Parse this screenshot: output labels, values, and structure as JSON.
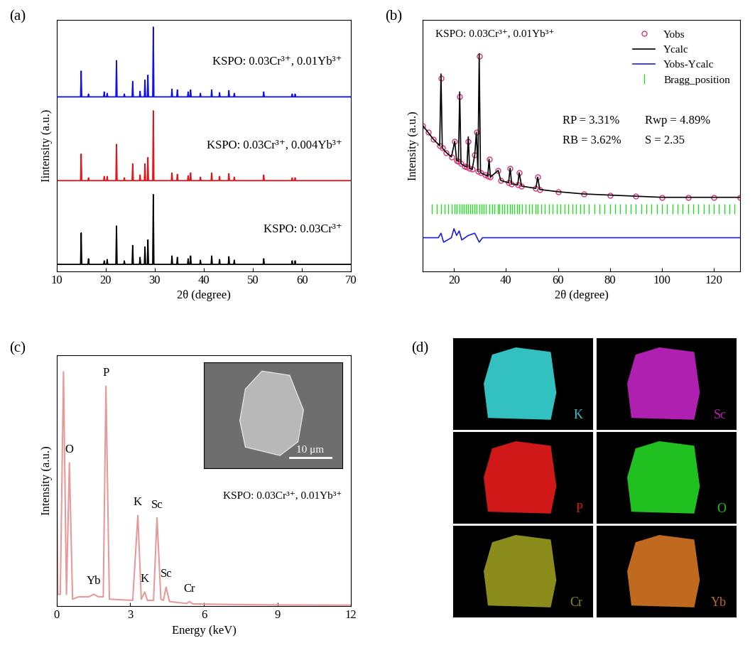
{
  "chart_data": [
    {
      "type": "line",
      "title": "(a)",
      "x_label": "2θ (degree)",
      "y_label": "Iintensity (a.u.)",
      "xlim": [
        10,
        70
      ],
      "xticks": [
        10,
        20,
        30,
        40,
        50,
        60,
        70
      ],
      "ylim": [
        -10,
        350
      ],
      "tick_labels": "x",
      "stacked": true,
      "series": [
        {
          "name": "KSPO: 0.03Cr³⁺",
          "color": "#000000",
          "x": [
            15.0,
            16.5,
            19.7,
            20.3,
            22.2,
            23.8,
            25.5,
            27.0,
            28.0,
            28.6,
            29.7,
            33.5,
            34.6,
            36.8,
            37.3,
            39.3,
            41.6,
            43.2,
            45.1,
            46.2,
            52.2,
            58.0,
            58.6
          ],
          "values": [
            45,
            8,
            5,
            7,
            55,
            5,
            27,
            10,
            25,
            35,
            100,
            12,
            10,
            8,
            12,
            6,
            12,
            7,
            11,
            6,
            8,
            5,
            5
          ]
        },
        {
          "name": "KSPO: 0.03Cr³⁺, 0.004Yb³⁺",
          "color": "#e8141c",
          "x": [
            15.0,
            16.5,
            19.7,
            20.3,
            22.2,
            23.8,
            25.5,
            27.0,
            28.0,
            28.6,
            29.7,
            33.5,
            34.6,
            36.8,
            37.3,
            39.3,
            41.6,
            43.2,
            45.1,
            46.2,
            52.2,
            58.0,
            58.6
          ],
          "values": [
            38,
            4,
            6,
            6,
            52,
            4,
            24,
            8,
            24,
            33,
            100,
            11,
            9,
            7,
            11,
            5,
            11,
            6,
            10,
            5,
            8,
            4,
            4
          ]
        },
        {
          "name": "KSPO: 0.03Cr³⁺, 0.01Yb³⁺",
          "color": "#1010f0",
          "x": [
            15.0,
            16.5,
            19.7,
            20.3,
            22.2,
            23.8,
            25.5,
            27.0,
            28.0,
            28.6,
            29.7,
            33.5,
            34.6,
            36.8,
            37.3,
            39.3,
            41.6,
            43.2,
            45.1,
            46.2,
            52.2,
            58.0,
            58.6
          ],
          "values": [
            37,
            4,
            7,
            5,
            52,
            4,
            22,
            8,
            24,
            31,
            100,
            11,
            10,
            7,
            10,
            5,
            10,
            6,
            9,
            5,
            7,
            4,
            4
          ]
        }
      ]
    },
    {
      "type": "line",
      "title": "(b)",
      "x_label": "2θ (degree)",
      "y_label": "Intensity (a.u.)",
      "label": "KSPO: 0.03Cr³⁺, 0.01Yb³⁺",
      "statistics": [
        "RP = 3.31%",
        "Rwp = 4.89%",
        "RB = 3.62%",
        "S = 2.35"
      ],
      "xlim": [
        8,
        130
      ],
      "xticks": [
        20,
        40,
        60,
        80,
        100,
        120
      ],
      "ylim": [
        0,
        112
      ],
      "tick_labels": "x",
      "legend": "upper right",
      "series": [
        {
          "name": "Yobs",
          "color": "#e0307a",
          "marker": "circle",
          "line_style": "none",
          "x": [
            8,
            10,
            12,
            14.5,
            15,
            15.5,
            17,
            19,
            20.3,
            21,
            21.7,
            22.2,
            22.7,
            24,
            25,
            25.5,
            26,
            27,
            28,
            28.6,
            29.2,
            29.7,
            30.2,
            32,
            33,
            33.5,
            34,
            37,
            38,
            41,
            41.6,
            42.2,
            44.5,
            45.1,
            46,
            51.5,
            52.2,
            53,
            60,
            70,
            80,
            90,
            100,
            110,
            120,
            130
          ],
          "values": [
            65,
            62,
            59,
            56,
            86,
            55,
            53,
            51,
            58,
            49.5,
            49,
            78,
            48,
            47,
            46.5,
            58,
            46,
            45.5,
            52,
            62,
            44.5,
            96,
            44,
            43,
            42.5,
            50,
            42,
            45,
            40.5,
            39.5,
            46,
            39,
            38.5,
            44,
            38,
            37,
            42,
            36.5,
            35.5,
            34.5,
            34,
            33.5,
            33,
            33,
            33,
            33
          ]
        },
        {
          "name": "Ycalc",
          "color": "#000000",
          "marker": "none",
          "line_style": "solid",
          "x": [
            8,
            10,
            12,
            14.5,
            15,
            15.5,
            17,
            19,
            20.3,
            21,
            21.7,
            22.2,
            22.7,
            24,
            25,
            25.5,
            26,
            27,
            28,
            28.6,
            29.2,
            29.7,
            30.2,
            32,
            33,
            33.5,
            34,
            37,
            38,
            41,
            41.6,
            42.2,
            44.5,
            45.1,
            46,
            51.5,
            52.2,
            53,
            60,
            70,
            80,
            90,
            100,
            110,
            120,
            130
          ],
          "values": [
            65,
            62,
            59,
            56,
            88,
            55,
            53,
            51,
            58,
            49.5,
            49,
            80,
            48,
            47,
            46.5,
            60,
            46,
            45.5,
            52,
            62,
            44.5,
            97,
            44,
            43,
            42.5,
            50,
            42,
            45,
            40.5,
            39.5,
            46,
            39,
            38.5,
            44,
            38,
            37,
            42,
            36.5,
            35.5,
            34.5,
            34,
            33.5,
            33,
            33,
            33,
            33
          ]
        },
        {
          "name": "Yobs-Ycalc",
          "color": "#2020e0",
          "marker": "none",
          "line_style": "solid",
          "x": [
            8,
            14,
            15,
            16,
            19,
            20,
            21,
            22,
            23,
            25.5,
            28,
            29.7,
            31,
            40,
            60,
            90,
            130
          ],
          "values": [
            15,
            15,
            17,
            13,
            15,
            19,
            16,
            18,
            14,
            16,
            17,
            13,
            15,
            15,
            15,
            15,
            15
          ]
        },
        {
          "name": "Bragg_position",
          "color": "#22dd22",
          "marker": "vline",
          "line_style": "none",
          "x": [
            11.5,
            13.5,
            15.0,
            16.5,
            17.8,
            19.0,
            20.3,
            21.1,
            22.2,
            23.0,
            23.8,
            24.6,
            25.5,
            26.3,
            27.0,
            27.8,
            28.6,
            29.7,
            30.5,
            31.4,
            32.2,
            33.5,
            34.6,
            35.5,
            36.8,
            37.3,
            38.4,
            39.3,
            40.5,
            41.6,
            42.4,
            43.2,
            44.3,
            45.1,
            46.2,
            47.5,
            48.8,
            50.1,
            51.3,
            52.2,
            53.5,
            55,
            56.5,
            58,
            59.5,
            61,
            62.5,
            64,
            65.5,
            67,
            68.5,
            70,
            72,
            74,
            76,
            78,
            80,
            82,
            84,
            86,
            88,
            90,
            92,
            94,
            96,
            98,
            100,
            102,
            104,
            106,
            108,
            110,
            112,
            114,
            116,
            118,
            120,
            122,
            124,
            126,
            128
          ]
        }
      ]
    },
    {
      "type": "line",
      "title": "(c)",
      "x_label": "Energy (keV)",
      "y_label": "Intensity (a.u.)",
      "label": "KSPO: 0.03Cr³⁺, 0.01Yb³⁺",
      "inset_scale_bar": "10 μm",
      "xlim": [
        0,
        12
      ],
      "xticks": [
        0,
        3,
        6,
        9,
        12
      ],
      "ylim": [
        0,
        105
      ],
      "tick_labels": "x",
      "color": "#e89a9a",
      "x": [
        0,
        0.05,
        0.15,
        0.28,
        0.4,
        0.52,
        0.65,
        0.9,
        1.3,
        1.52,
        1.7,
        1.9,
        2.01,
        2.15,
        3.1,
        3.31,
        3.45,
        3.59,
        3.7,
        3.95,
        4.09,
        4.25,
        4.35,
        4.46,
        4.6,
        5.3,
        5.41,
        5.55,
        7,
        9,
        12
      ],
      "values": [
        60,
        5,
        5,
        98,
        5,
        60,
        3,
        4,
        4,
        5,
        4,
        4,
        92,
        3,
        2.5,
        38,
        3,
        6,
        2.5,
        2.5,
        37,
        3,
        2.5,
        8,
        2,
        1.2,
        2,
        1,
        0.8,
        0.6,
        0.5
      ],
      "peak_labels": [
        {
          "x": 0.52,
          "value": 60,
          "label": "O"
        },
        {
          "x": 1.52,
          "value": 5,
          "label": "Yb"
        },
        {
          "x": 2.01,
          "value": 92,
          "label": "P"
        },
        {
          "x": 3.31,
          "value": 38,
          "label": "K"
        },
        {
          "x": 3.59,
          "value": 6,
          "label": "K"
        },
        {
          "x": 4.09,
          "value": 37,
          "label": "Sc"
        },
        {
          "x": 4.46,
          "value": 8,
          "label": "Sc"
        },
        {
          "x": 5.41,
          "value": 2,
          "label": "Cr"
        }
      ]
    },
    {
      "type": "image_grid",
      "title": "(d)",
      "maps": [
        {
          "label": "K",
          "color": "#33c0c0"
        },
        {
          "label": "Sc",
          "color": "#b020b0"
        },
        {
          "label": "P",
          "color": "#d01818"
        },
        {
          "label": "O",
          "color": "#20c020"
        },
        {
          "label": "Cr",
          "color": "#8c8c1c"
        },
        {
          "label": "Yb",
          "color": "#c06a20"
        }
      ]
    }
  ]
}
